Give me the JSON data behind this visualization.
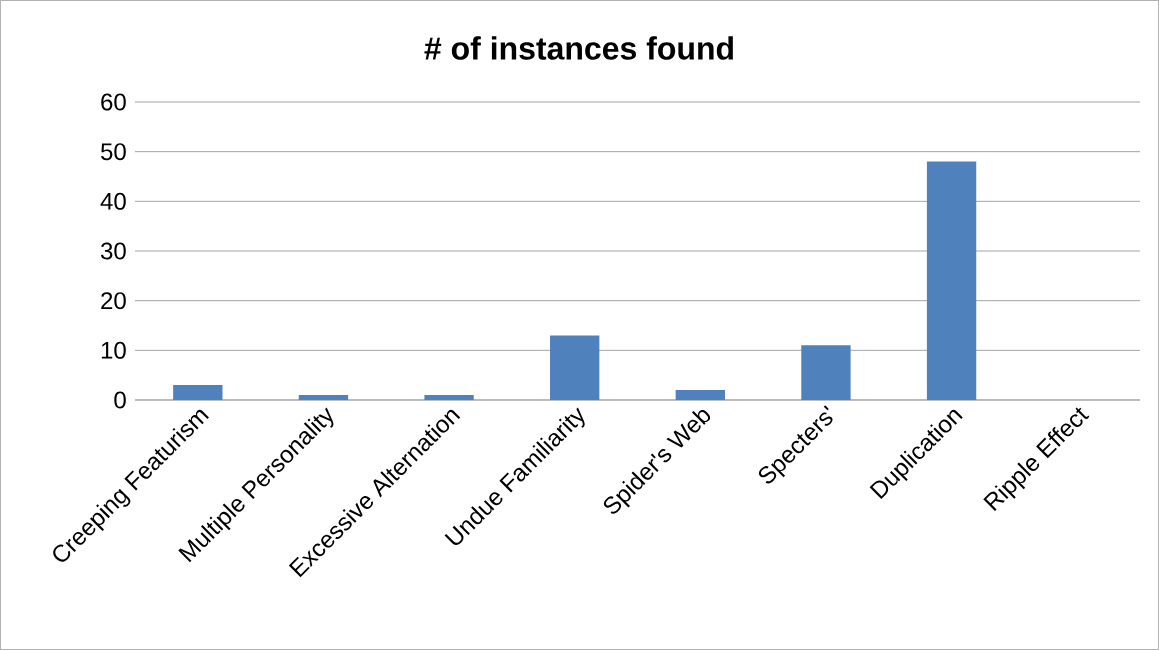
{
  "chart_data": {
    "type": "bar",
    "title": "# of instances found",
    "categories": [
      "Creeping Featurism",
      "Multiple Personality",
      "Excessive Alternation",
      "Undue Familiarity",
      "Spider's Web",
      "Specters'",
      "Duplication",
      "Ripple Effect"
    ],
    "values": [
      3,
      1,
      1,
      13,
      2,
      11,
      48,
      0
    ],
    "color": "#4f81bd",
    "ylim": [
      0,
      60
    ],
    "yticks": [
      0,
      10,
      20,
      30,
      40,
      50,
      60
    ],
    "grid": "y"
  }
}
